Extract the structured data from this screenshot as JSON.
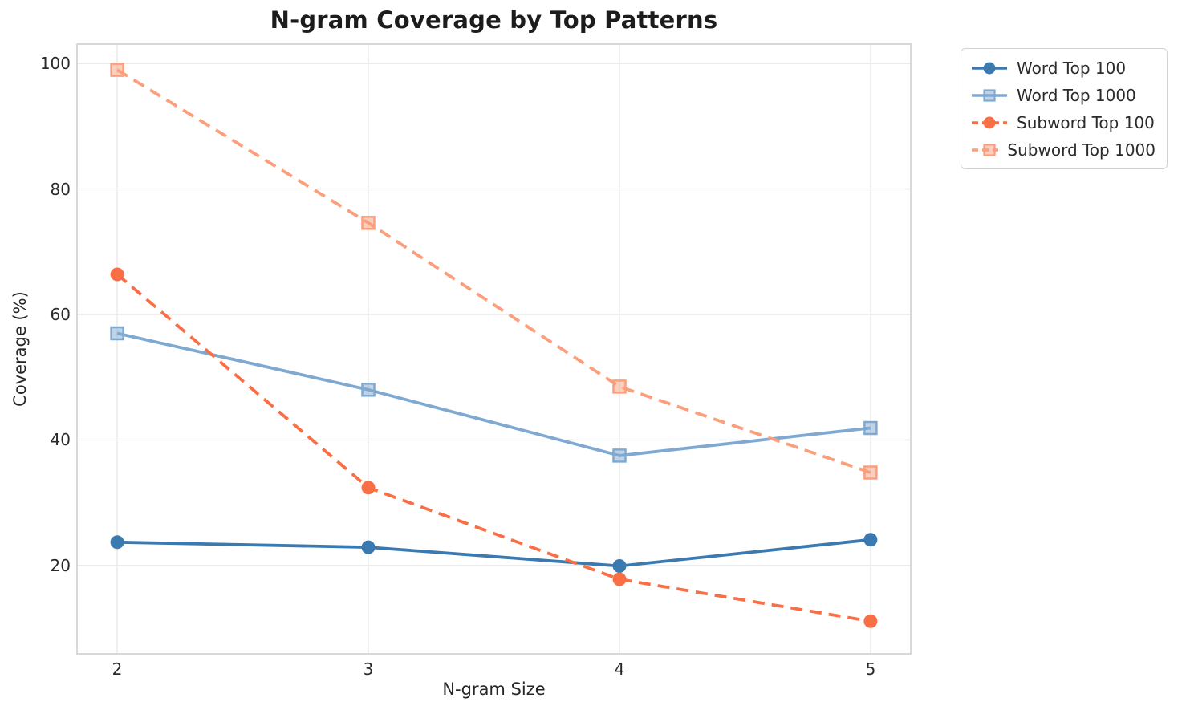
{
  "chart_data": {
    "type": "line",
    "title": "N-gram Coverage by Top Patterns",
    "xlabel": "N-gram Size",
    "ylabel": "Coverage (%)",
    "x": [
      2,
      3,
      4,
      5
    ],
    "xtick_labels": [
      "2",
      "3",
      "4",
      "5"
    ],
    "ytick_values": [
      20,
      40,
      60,
      80,
      100
    ],
    "xlim": [
      1.84,
      5.16
    ],
    "ylim": [
      5.9,
      103.1
    ],
    "grid": true,
    "legend_position": "outside upper right",
    "series": [
      {
        "name": "Word Top 100",
        "values": [
          23.7,
          22.9,
          19.9,
          24.1
        ],
        "color": "#3B79B1",
        "line_style": "solid",
        "marker": "circle"
      },
      {
        "name": "Word Top 1000",
        "values": [
          57.0,
          48.0,
          37.5,
          41.9
        ],
        "color": "#7FA9D1",
        "line_style": "solid",
        "marker": "square"
      },
      {
        "name": "Subword Top 100",
        "values": [
          66.4,
          32.4,
          17.8,
          11.1
        ],
        "color": "#F96E44",
        "line_style": "dashed",
        "marker": "circle"
      },
      {
        "name": "Subword Top 1000",
        "values": [
          99.0,
          74.6,
          48.5,
          34.8
        ],
        "color": "#FA9E7C",
        "line_style": "dashed",
        "marker": "square"
      }
    ],
    "style": {
      "background": "#ffffff",
      "grid_color": "#e9e9e9",
      "spine_color": "#cbcbcb",
      "title_color": "#1c1c1c",
      "tick_color": "#2a2a2a"
    }
  }
}
